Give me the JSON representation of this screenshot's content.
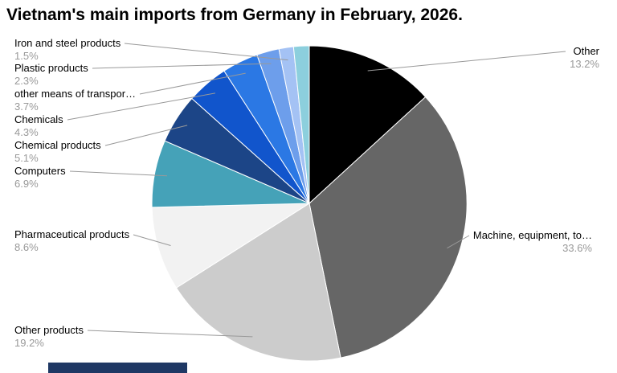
{
  "chart_data": {
    "type": "pie",
    "title": "Vietnam's main imports from Germany in February, 2026.",
    "legend": "none",
    "direction": "clockwise",
    "start_angle_deg": 0,
    "label_color": "#000000",
    "percent_color": "#999999",
    "leader_line_color": "#999999",
    "slices": [
      {
        "label": "Other",
        "value": 13.2,
        "percent_label": "13.2%",
        "color": "#000000"
      },
      {
        "label": "Machine, equipment, to…",
        "value": 33.6,
        "percent_label": "33.6%",
        "color": "#666666"
      },
      {
        "label": "Other products",
        "value": 19.2,
        "percent_label": "19.2%",
        "color": "#cccccc"
      },
      {
        "label": "Pharmaceutical products",
        "value": 8.6,
        "percent_label": "8.6%",
        "color": "#f2f2f2"
      },
      {
        "label": "Computers",
        "value": 6.9,
        "percent_label": "6.9%",
        "color": "#45a2b8"
      },
      {
        "label": "Chemical products",
        "value": 5.1,
        "percent_label": "5.1%",
        "color": "#1c4587"
      },
      {
        "label": "Chemicals",
        "value": 4.3,
        "percent_label": "4.3%",
        "color": "#1155cc"
      },
      {
        "label": "other means of transpor…",
        "value": 3.7,
        "percent_label": "3.7%",
        "color": "#2b78e4"
      },
      {
        "label": "Plastic products",
        "value": 2.3,
        "percent_label": "2.3%",
        "color": "#6d9eeb"
      },
      {
        "label": "Iron and steel products",
        "value": 1.5,
        "percent_label": "1.5%",
        "color": "#a4c2f4"
      },
      {
        "label": "",
        "value": 1.6,
        "percent_label": "",
        "color": "#8ccfdd"
      }
    ]
  },
  "footer_bar": {
    "color": "#1f3864"
  }
}
